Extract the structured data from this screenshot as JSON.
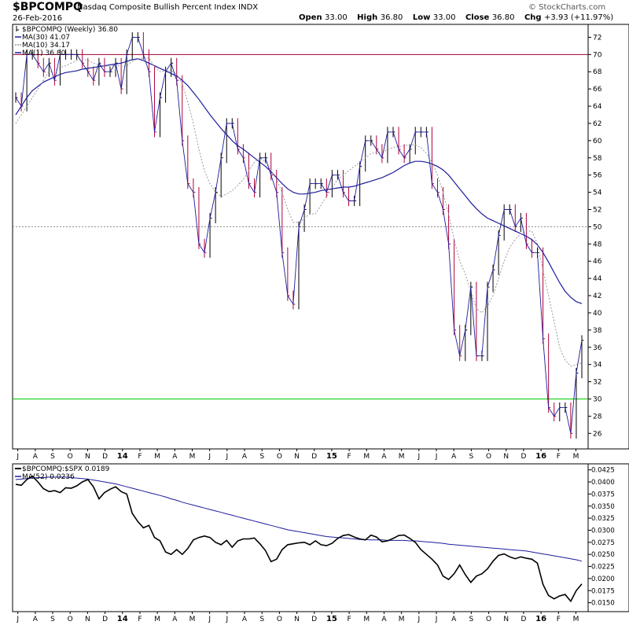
{
  "header": {
    "symbol": "$BPCOMPQ",
    "description": "Nasdaq Composite Bullish Percent Index",
    "exchange": "INDX",
    "date": "26-Feb-2016",
    "open_label": "Open",
    "open": "33.00",
    "high_label": "High",
    "high": "36.80",
    "low_label": "Low",
    "low": "33.00",
    "close_label": "Close",
    "close": "36.80",
    "chg_label": "Chg",
    "chg": "+3.93 (+11.97%)",
    "watermark": "© StockCharts.com"
  },
  "colors": {
    "up_bar": "#000000",
    "down_bar": "#b0003a",
    "ma30": "#1c1c9c",
    "ma10": "#9a9a9a",
    "hline70": "#990033",
    "hline30": "#00cc00",
    "grid": "#888888",
    "ratio_line": "#000000",
    "ratio_ma": "#1c1c9c"
  },
  "chart_data": [
    {
      "type": "line",
      "title": "$BPCOMPQ (Weekly) 36.80",
      "legend": [
        "$BPCOMPQ (Weekly) 36.80",
        "MA(30) 41.07",
        "MA(10) 34.17",
        "MA(1) 36.80"
      ],
      "legend_position": "top-left",
      "y_ticks": [
        26,
        28,
        30,
        32,
        34,
        36,
        38,
        40,
        42,
        44,
        46,
        48,
        50,
        52,
        54,
        56,
        58,
        60,
        62,
        64,
        66,
        68,
        70,
        72
      ],
      "ylim": [
        24.2,
        73.5
      ],
      "x_labels": [
        "J",
        "A",
        "S",
        "O",
        "N",
        "D",
        "14",
        "F",
        "M",
        "A",
        "M",
        "J",
        "J",
        "A",
        "S",
        "O",
        "N",
        "D",
        "15",
        "F",
        "M",
        "A",
        "M",
        "J",
        "J",
        "A",
        "S",
        "O",
        "N",
        "D",
        "16",
        "F",
        "M"
      ],
      "reference_lines": [
        70,
        50,
        30
      ],
      "grid": "dotted at 50",
      "series": [
        {
          "name": "$BPCOMPQ (Weekly)",
          "values": [
            65,
            64,
            70,
            70,
            69,
            68,
            69,
            67,
            70,
            70,
            70,
            70,
            69,
            68,
            67,
            69,
            68,
            68,
            69,
            66,
            70,
            72,
            72,
            70,
            68,
            61,
            65,
            68,
            69,
            67,
            60,
            55,
            54,
            48,
            47,
            51,
            54,
            58,
            62,
            62,
            59,
            58,
            55,
            54,
            58,
            58,
            56,
            54,
            47,
            42,
            41,
            50,
            52,
            55,
            55,
            55,
            54,
            56,
            56,
            54,
            53,
            53,
            57,
            60,
            60,
            59,
            58,
            61,
            61,
            59,
            58,
            59,
            61,
            61,
            61,
            55,
            54,
            52,
            48,
            38,
            35,
            38,
            43,
            35,
            35,
            43,
            45,
            49,
            52,
            52,
            50,
            51,
            48,
            47,
            47,
            37,
            29,
            28,
            29,
            29,
            26,
            33,
            36.8
          ]
        },
        {
          "name": "MA(10)",
          "values": [
            62,
            63,
            64,
            65,
            66,
            67,
            68,
            68,
            68.5,
            68.7,
            69,
            69.3,
            69.5,
            69.3,
            69,
            68.8,
            68.7,
            68.6,
            68.8,
            68.6,
            68.7,
            69.2,
            69.5,
            69.6,
            69.6,
            68.6,
            68,
            68.1,
            68.1,
            67.7,
            66.6,
            64.5,
            62,
            59,
            56.5,
            55,
            54,
            53.5,
            53.8,
            54.2,
            54.8,
            55.5,
            56.5,
            57.5,
            58,
            57.5,
            56.5,
            55.5,
            54,
            52,
            50.5,
            50.5,
            51,
            51.5,
            51.5,
            52.5,
            53.5,
            54.5,
            55.5,
            56,
            56.5,
            57,
            57.5,
            58,
            58.5,
            58.6,
            58.7,
            58.9,
            59.2,
            59.3,
            59.4,
            59.5,
            59.5,
            59.2,
            58.5,
            57.5,
            56,
            54,
            51.5,
            48.5,
            46,
            44.5,
            42.5,
            40.5,
            40,
            40.8,
            42,
            44,
            46,
            47.6,
            48.5,
            49.2,
            49.5,
            49.5,
            48,
            45,
            42,
            39,
            36,
            34.5,
            33.8,
            34,
            34.2
          ]
        },
        {
          "name": "MA(30)",
          "values": [
            63,
            64,
            65,
            65.8,
            66.3,
            66.8,
            67.1,
            67.4,
            67.7,
            67.9,
            68,
            68.1,
            68.3,
            68.4,
            68.5,
            68.6,
            68.7,
            68.8,
            68.9,
            69,
            69.2,
            69.4,
            69.5,
            69.3,
            69,
            68.7,
            68.4,
            68.1,
            67.8,
            67.5,
            67,
            66.4,
            65.6,
            64.8,
            63.9,
            63,
            62.2,
            61.4,
            60.7,
            60,
            59.4,
            59,
            58.5,
            58,
            57.5,
            57,
            56.4,
            55.7,
            55,
            54.4,
            54,
            53.8,
            53.8,
            53.9,
            54,
            54.2,
            54.3,
            54.4,
            54.5,
            54.6,
            54.6,
            54.7,
            54.9,
            55.1,
            55.3,
            55.5,
            55.7,
            56,
            56.3,
            56.7,
            57.1,
            57.4,
            57.6,
            57.6,
            57.5,
            57.3,
            57,
            56.6,
            56,
            55.2,
            54.4,
            53.6,
            52.8,
            52.1,
            51.5,
            51,
            50.7,
            50.4,
            50.1,
            49.8,
            49.5,
            49.2,
            48.9,
            48.5,
            47.9,
            47,
            45.9,
            44.7,
            43.5,
            42.5,
            41.8,
            41.3,
            41.07
          ]
        }
      ]
    },
    {
      "type": "line",
      "title": "$BPCOMPQ:$SPX 0.0189",
      "legend": [
        "$BPCOMPQ:$SPX 0.0189",
        "MA(52) 0.0236"
      ],
      "legend_position": "top-left",
      "y_ticks": [
        0.015,
        0.0175,
        0.02,
        0.0225,
        0.025,
        0.0275,
        0.03,
        0.0325,
        0.035,
        0.0375,
        0.04,
        0.0425
      ],
      "ylim": [
        0.01315,
        0.04375
      ],
      "x_labels": [
        "J",
        "A",
        "S",
        "O",
        "N",
        "D",
        "14",
        "F",
        "M",
        "A",
        "M",
        "J",
        "J",
        "A",
        "S",
        "O",
        "N",
        "D",
        "15",
        "F",
        "M",
        "A",
        "M",
        "J",
        "J",
        "A",
        "S",
        "O",
        "N",
        "D",
        "16",
        "F",
        "M"
      ],
      "series": [
        {
          "name": "$BPCOMPQ:$SPX",
          "values": [
            0.0395,
            0.0393,
            0.0405,
            0.0412,
            0.04,
            0.0386,
            0.038,
            0.0382,
            0.0378,
            0.0388,
            0.0387,
            0.0392,
            0.04,
            0.0405,
            0.039,
            0.0365,
            0.0378,
            0.0385,
            0.039,
            0.038,
            0.0375,
            0.0335,
            0.0318,
            0.0305,
            0.031,
            0.0285,
            0.0278,
            0.0255,
            0.025,
            0.026,
            0.025,
            0.0262,
            0.028,
            0.0285,
            0.0288,
            0.0285,
            0.0275,
            0.027,
            0.0279,
            0.0265,
            0.0278,
            0.0282,
            0.0282,
            0.0284,
            0.0272,
            0.0258,
            0.0235,
            0.024,
            0.026,
            0.027,
            0.0272,
            0.0274,
            0.0275,
            0.027,
            0.0278,
            0.027,
            0.0268,
            0.0273,
            0.0283,
            0.0289,
            0.0291,
            0.0286,
            0.0282,
            0.028,
            0.029,
            0.0286,
            0.0276,
            0.0278,
            0.0283,
            0.0289,
            0.029,
            0.0283,
            0.0275,
            0.026,
            0.025,
            0.024,
            0.0228,
            0.0205,
            0.0198,
            0.021,
            0.0228,
            0.0208,
            0.0192,
            0.0205,
            0.021,
            0.022,
            0.0236,
            0.0248,
            0.0251,
            0.0245,
            0.0241,
            0.0245,
            0.0242,
            0.024,
            0.0232,
            0.0188,
            0.0165,
            0.0158,
            0.0164,
            0.0167,
            0.0153,
            0.0175,
            0.0189
          ]
        },
        {
          "name": "MA(52)",
          "values": [
            0.0405,
            0.0406,
            0.0407,
            0.0408,
            0.0409,
            0.0409,
            0.041,
            0.041,
            0.041,
            0.041,
            0.0409,
            0.0408,
            0.0407,
            0.0406,
            0.0404,
            0.0402,
            0.04,
            0.0398,
            0.0396,
            0.0393,
            0.039,
            0.0387,
            0.0384,
            0.0381,
            0.0378,
            0.0375,
            0.0372,
            0.0369,
            0.0365,
            0.0362,
            0.0358,
            0.0355,
            0.0352,
            0.0349,
            0.0346,
            0.0343,
            0.034,
            0.0337,
            0.0334,
            0.0331,
            0.0328,
            0.0325,
            0.0322,
            0.0319,
            0.0316,
            0.0313,
            0.031,
            0.0307,
            0.0304,
            0.0301,
            0.0299,
            0.0297,
            0.0295,
            0.0293,
            0.0291,
            0.0289,
            0.0287,
            0.0286,
            0.0285,
            0.0284,
            0.0283,
            0.0282,
            0.0281,
            0.0281,
            0.028,
            0.028,
            0.028,
            0.0279,
            0.0279,
            0.0279,
            0.0279,
            0.0278,
            0.0278,
            0.0277,
            0.0276,
            0.0275,
            0.0274,
            0.0273,
            0.0271,
            0.027,
            0.0269,
            0.0268,
            0.0267,
            0.0266,
            0.0265,
            0.0264,
            0.0263,
            0.0262,
            0.0261,
            0.026,
            0.0259,
            0.0258,
            0.0257,
            0.0255,
            0.0253,
            0.0251,
            0.0249,
            0.0247,
            0.0245,
            0.0243,
            0.0241,
            0.0239,
            0.0236
          ]
        }
      ]
    }
  ]
}
